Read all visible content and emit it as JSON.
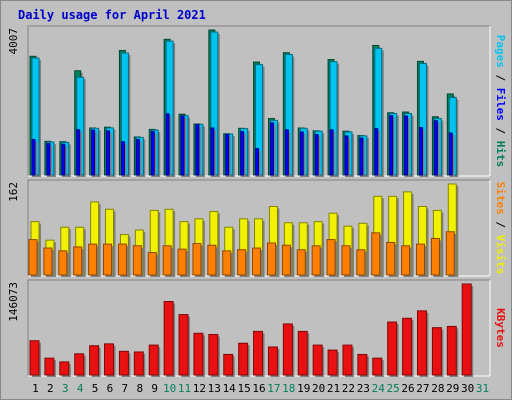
{
  "colors": {
    "background": "#c0c0c0",
    "title": "#0000cc",
    "hits": "#00805c",
    "files": "#0000ff",
    "pages": "#00c4f0",
    "visits": "#f0f000",
    "sites": "#ff8000",
    "kbytes": "#e81010",
    "weekend_label": "#00805c",
    "weekday_label": "#000000"
  },
  "chart_data": {
    "type": "bar",
    "title": "Daily usage for April 2021",
    "categories": [
      "1",
      "2",
      "3",
      "4",
      "5",
      "6",
      "7",
      "8",
      "9",
      "10",
      "11",
      "12",
      "13",
      "14",
      "15",
      "16",
      "17",
      "18",
      "19",
      "20",
      "21",
      "22",
      "23",
      "24",
      "25",
      "26",
      "27",
      "28",
      "29",
      "30",
      "31"
    ],
    "weekend_days": [
      "3",
      "4",
      "10",
      "11",
      "17",
      "18",
      "24",
      "25",
      "31"
    ],
    "panels": [
      {
        "id": "hits-files-pages",
        "max_label": "4007",
        "ylim": [
          0,
          4007
        ],
        "legend": [
          {
            "text": "Pages",
            "color": "#00c4f0"
          },
          {
            "text": " / ",
            "color": "#000000"
          },
          {
            "text": "Files",
            "color": "#0000ff"
          },
          {
            "text": " / ",
            "color": "#000000"
          },
          {
            "text": "Hits",
            "color": "#00805c"
          }
        ],
        "series": [
          {
            "name": "Hits",
            "values": [
              3280,
              930,
              920,
              2880,
              1300,
              1320,
              3440,
              1050,
              1260,
              3750,
              1680,
              1410,
              4007,
              1140,
              1290,
              3120,
              1560,
              3380,
              1300,
              1220,
              3190,
              1210,
              1090,
              3580,
              1720,
              1740,
              3140,
              1610,
              2240,
              null,
              null
            ]
          },
          {
            "name": "Files",
            "values": [
              980,
              870,
              850,
              1250,
              1240,
              1220,
              920,
              980,
              1200,
              1690,
              1630,
              1390,
              1300,
              1120,
              1200,
              730,
              1440,
              1250,
              1190,
              1120,
              1250,
              1080,
              1020,
              1280,
              1640,
              1630,
              1310,
              1500,
              1160,
              null,
              null
            ]
          },
          {
            "name": "Pages",
            "values": [
              3230,
              910,
              900,
              2700,
              1290,
              1300,
              3370,
              1040,
              1240,
              3700,
              1640,
              1400,
              3950,
              1130,
              1280,
              3050,
              1510,
              3330,
              1290,
              1210,
              3130,
              1190,
              1080,
              3500,
              1700,
              1700,
              3080,
              1560,
              2140,
              null,
              null
            ]
          }
        ]
      },
      {
        "id": "visits-sites",
        "max_label": "162",
        "ylim": [
          0,
          162
        ],
        "legend": [
          {
            "text": "Sites",
            "color": "#ff8000"
          },
          {
            "text": " / ",
            "color": "#000000"
          },
          {
            "text": "Visits",
            "color": "#f0f000"
          }
        ],
        "series": [
          {
            "name": "Visits",
            "values": [
              95,
              62,
              85,
              85,
              130,
              117,
              72,
              80,
              115,
              117,
              95,
              100,
              113,
              85,
              100,
              100,
              122,
              93,
              93,
              95,
              110,
              87,
              92,
              140,
              140,
              148,
              122,
              115,
              162,
              null,
              null
            ]
          },
          {
            "name": "Sites",
            "values": [
              63,
              48,
              43,
              50,
              55,
              55,
              55,
              52,
              40,
              52,
              46,
              56,
              53,
              43,
              45,
              48,
              57,
              53,
              45,
              52,
              63,
              52,
              45,
              75,
              58,
              52,
              55,
              65,
              77,
              null,
              null
            ]
          }
        ]
      },
      {
        "id": "kbytes",
        "max_label": "146073",
        "ylim": [
          0,
          146073
        ],
        "legend": [
          {
            "text": "KBytes",
            "color": "#e81010"
          }
        ],
        "series": [
          {
            "name": "KBytes",
            "values": [
              55000,
              27000,
              21000,
              34000,
              47000,
              50000,
              38000,
              37000,
              48000,
              118000,
              97000,
              67000,
              65000,
              33000,
              51000,
              70000,
              45000,
              82000,
              70000,
              48000,
              40000,
              48000,
              33000,
              27000,
              85000,
              91000,
              103000,
              76000,
              78000,
              146073,
              null
            ]
          }
        ]
      }
    ]
  }
}
